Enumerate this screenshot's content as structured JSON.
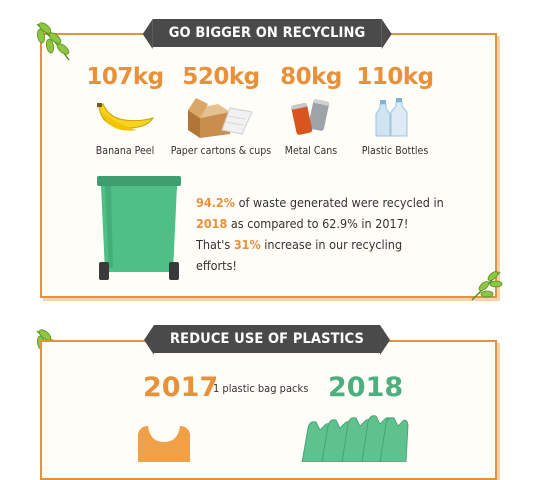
{
  "section_recycling": {
    "title": "GO BIGGER ON RECYCLING",
    "stats": [
      {
        "value": "107kg",
        "label": "Banana Peel",
        "icon": "banana-icon"
      },
      {
        "value": "520kg",
        "label": "Paper cartons & cups",
        "icon": "carton-icon"
      },
      {
        "value": "80kg",
        "label": "Metal Cans",
        "icon": "cans-icon"
      },
      {
        "value": "110kg",
        "label": "Plastic Bottles",
        "icon": "bottles-icon"
      }
    ],
    "text": {
      "pct_2018": "94.2%",
      "line1_rest": " of waste generated were recycled in",
      "year_2018": "2018",
      "line2_rest": " as compared to 62.9% in 2017!",
      "line3_start": "That's ",
      "increase": "31%",
      "line3_rest": " increase in our recycling efforts!"
    }
  },
  "section_plastics": {
    "title": "REDUCE USE OF PLASTICS",
    "year_a": "2017",
    "year_b": "2018",
    "packs_label": "1 plastic bag packs"
  },
  "colors": {
    "accent": "#e8913a",
    "green": "#4caf7d",
    "banner": "#4a4a4a"
  }
}
